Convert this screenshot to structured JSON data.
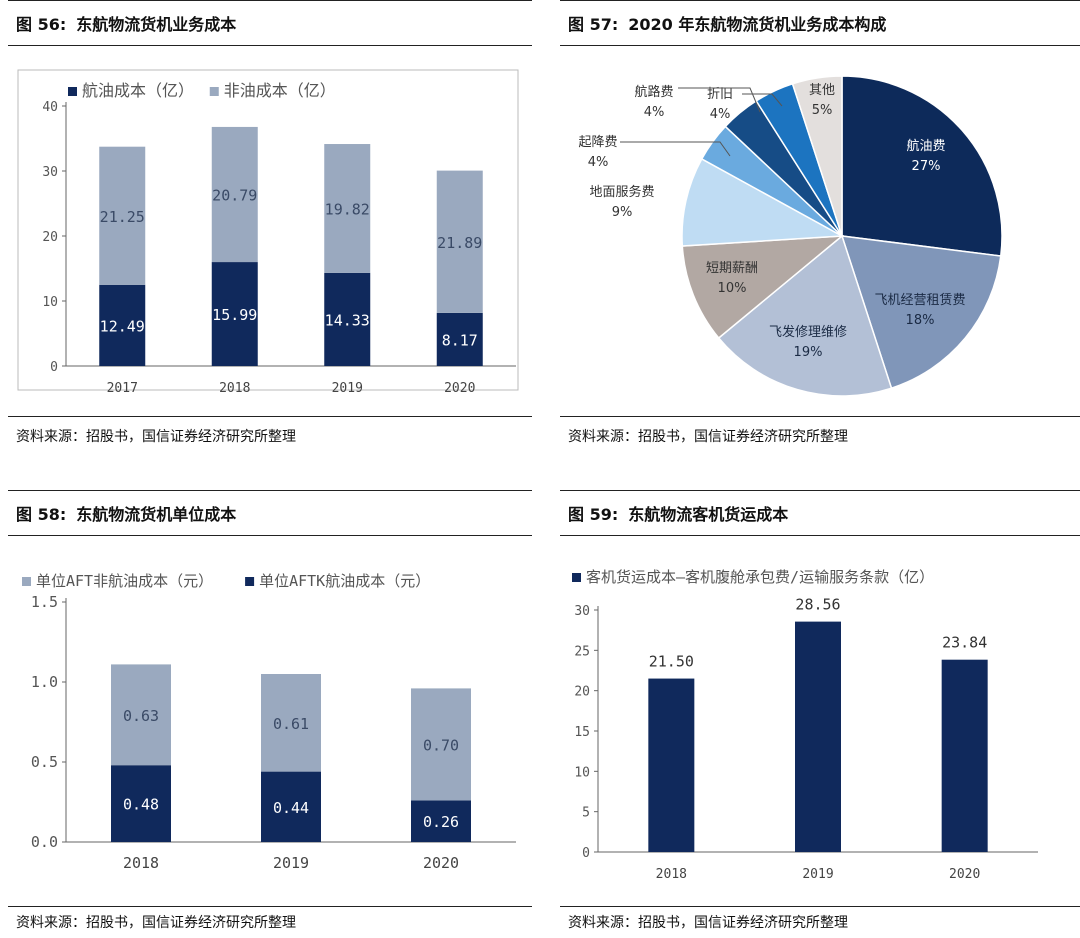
{
  "fig56": {
    "num": "图 56:",
    "title": "东航物流货机业务成本",
    "source": "资料来源：招股书，国信证券经济研究所整理",
    "chart_data": {
      "type": "bar",
      "stacked": true,
      "categories": [
        "2017",
        "2018",
        "2019",
        "2020"
      ],
      "series": [
        {
          "name": "航油成本（亿）",
          "values": [
            12.49,
            15.99,
            14.33,
            8.17
          ],
          "color": "#10295c",
          "labels": [
            "12.49",
            "15.99",
            "14.33",
            "8.17"
          ]
        },
        {
          "name": "非油成本（亿）",
          "values": [
            21.25,
            20.79,
            19.82,
            21.89
          ],
          "color": "#9aa9bf",
          "labels": [
            "21.25",
            "20.79",
            "19.82",
            "21.89"
          ]
        }
      ],
      "ylim": [
        0,
        40
      ],
      "yticks": [
        "0",
        "10",
        "20",
        "30",
        "40"
      ],
      "legend": "top-left"
    }
  },
  "fig57": {
    "num": "图 57:",
    "title": "2020 年东航物流货机业务成本构成",
    "source": "资料来源：招股书，国信证券经济研究所整理",
    "chart_data": {
      "type": "pie",
      "slices": [
        {
          "label": "航油费",
          "pct": "27%",
          "value": 27,
          "color": "#0d2a5a",
          "text_color": "#ffffff"
        },
        {
          "label": "飞机经营租赁费",
          "pct": "18%",
          "value": 18,
          "color": "#8096b9",
          "text_color": "#1a2a44"
        },
        {
          "label": "飞发修理维修",
          "pct": "19%",
          "value": 19,
          "color": "#b3c0d6",
          "text_color": "#1a2a44"
        },
        {
          "label": "短期薪酬",
          "pct": "10%",
          "value": 10,
          "color": "#b2a8a3",
          "text_color": "#333333"
        },
        {
          "label": "地面服务费",
          "pct": "9%",
          "value": 9,
          "color": "#bfdcf3",
          "text_color": "#333333"
        },
        {
          "label": "起降费",
          "pct": "4%",
          "value": 4,
          "color": "#6aaadf",
          "text_color": "#333333"
        },
        {
          "label": "航路费",
          "pct": "4%",
          "value": 4,
          "color": "#164c86",
          "text_color": "#333333"
        },
        {
          "label": "折旧",
          "pct": "4%",
          "value": 4,
          "color": "#1c74c0",
          "text_color": "#333333"
        },
        {
          "label": "其他",
          "pct": "5%",
          "value": 5,
          "color": "#e3dfdd",
          "text_color": "#333333"
        }
      ]
    }
  },
  "fig58": {
    "num": "图 58:",
    "title": "东航物流货机单位成本",
    "source": "资料来源：招股书，国信证券经济研究所整理",
    "chart_data": {
      "type": "bar",
      "stacked": true,
      "categories": [
        "2018",
        "2019",
        "2020"
      ],
      "series": [
        {
          "name": "单位AFTK航油成本（元）",
          "values": [
            0.48,
            0.44,
            0.26
          ],
          "color": "#10295c",
          "labels": [
            "0.48",
            "0.44",
            "0.26"
          ]
        },
        {
          "name": "单位AFT非航油成本（元）",
          "values": [
            0.63,
            0.61,
            0.7
          ],
          "color": "#9aa9bf",
          "labels": [
            "0.63",
            "0.61",
            "0.70"
          ]
        }
      ],
      "ylim": [
        0,
        1.5
      ],
      "yticks": [
        "0.0",
        "0.5",
        "1.0",
        "1.5"
      ],
      "legend": "top-left"
    }
  },
  "fig59": {
    "num": "图 59:",
    "title": "东航物流客机货运成本",
    "source": "资料来源：招股书，国信证券经济研究所整理",
    "chart_data": {
      "type": "bar",
      "categories": [
        "2018",
        "2019",
        "2020"
      ],
      "series": [
        {
          "name": "客机货运成本—客机腹舱承包费/运输服务条款（亿）",
          "values": [
            21.5,
            28.56,
            23.84
          ],
          "color": "#10295c",
          "labels": [
            "21.50",
            "28.56",
            "23.84"
          ]
        }
      ],
      "ylim": [
        0,
        30
      ],
      "yticks": [
        "0",
        "5",
        "10",
        "15",
        "20",
        "25",
        "30"
      ],
      "legend": "top-left"
    }
  }
}
